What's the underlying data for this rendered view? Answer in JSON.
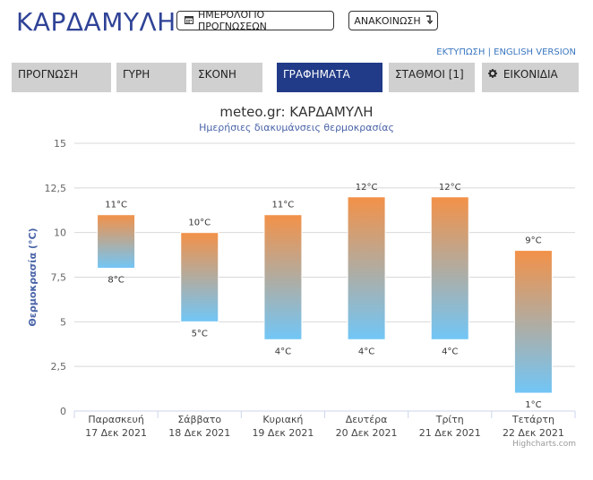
{
  "header": {
    "title": "ΚΑΡΔΑΜΥΛΗ",
    "calendar_button": "ΗΜΕΡΟΛΟΓΙΟ ΠΡΟΓΝΩΣΕΩΝ",
    "announce_button": "ΑΝΑΚΟΙΝΩΣΗ",
    "print_link": "ΕΚΤΥΠΩΣΗ",
    "link_separator": " | ",
    "english_link": "ENGLISH VERSION"
  },
  "icons": {
    "calendar": "calendar-icon",
    "announce": "arrow-down-icon",
    "icons_tab": "gear-icon"
  },
  "tabs": [
    {
      "label": "ΠΡΟΓΝΩΣΗ",
      "active": false
    },
    {
      "label": "ΓΥΡΗ",
      "active": false
    },
    {
      "label": "ΣΚΟΝΗ",
      "active": false
    },
    {
      "label": "ΓΡΑΦΗΜΑΤΑ",
      "active": true
    },
    {
      "label": "ΣΤΑΘΜΟΙ [1]",
      "active": false
    },
    {
      "label": "ΕΙΚΟΝΙΔΙΑ",
      "active": false
    }
  ],
  "colors": {
    "brand": "#2f4397",
    "active_tab": "#213b88",
    "bar_top": "#f39148",
    "bar_bottom": "#71c6f7"
  },
  "chart_data": {
    "type": "bar",
    "subtype": "columnrange",
    "title": "meteo.gr: ΚΑΡΔΑΜΥΛΗ",
    "subtitle": "Ημερήσιες διακυμάνσεις θερμοκρασίας",
    "ylabel": "Θερμοκρασία (°C)",
    "xlabel": "",
    "ylim": [
      0,
      15
    ],
    "yticks": [
      "0",
      "2,5",
      "5",
      "7,5",
      "10",
      "12,5",
      "15"
    ],
    "ytick_values": [
      0,
      2.5,
      5,
      7.5,
      10,
      12.5,
      15
    ],
    "grid": true,
    "categories": [
      [
        "Παρασκευή",
        "17 Δεκ 2021"
      ],
      [
        "Σάββατο",
        "18 Δεκ 2021"
      ],
      [
        "Κυριακή",
        "19 Δεκ 2021"
      ],
      [
        "Δευτέρα",
        "20 Δεκ 2021"
      ],
      [
        "Τρίτη",
        "21 Δεκ 2021"
      ],
      [
        "Τετάρτη",
        "22 Δεκ 2021"
      ]
    ],
    "low": [
      8,
      5,
      4,
      4,
      4,
      1
    ],
    "high": [
      11,
      10,
      11,
      12,
      12,
      9
    ],
    "low_labels": [
      "8°C",
      "5°C",
      "4°C",
      "4°C",
      "4°C",
      "1°C"
    ],
    "high_labels": [
      "11°C",
      "10°C",
      "11°C",
      "12°C",
      "12°C",
      "9°C"
    ]
  },
  "credits": "Highcharts.com"
}
